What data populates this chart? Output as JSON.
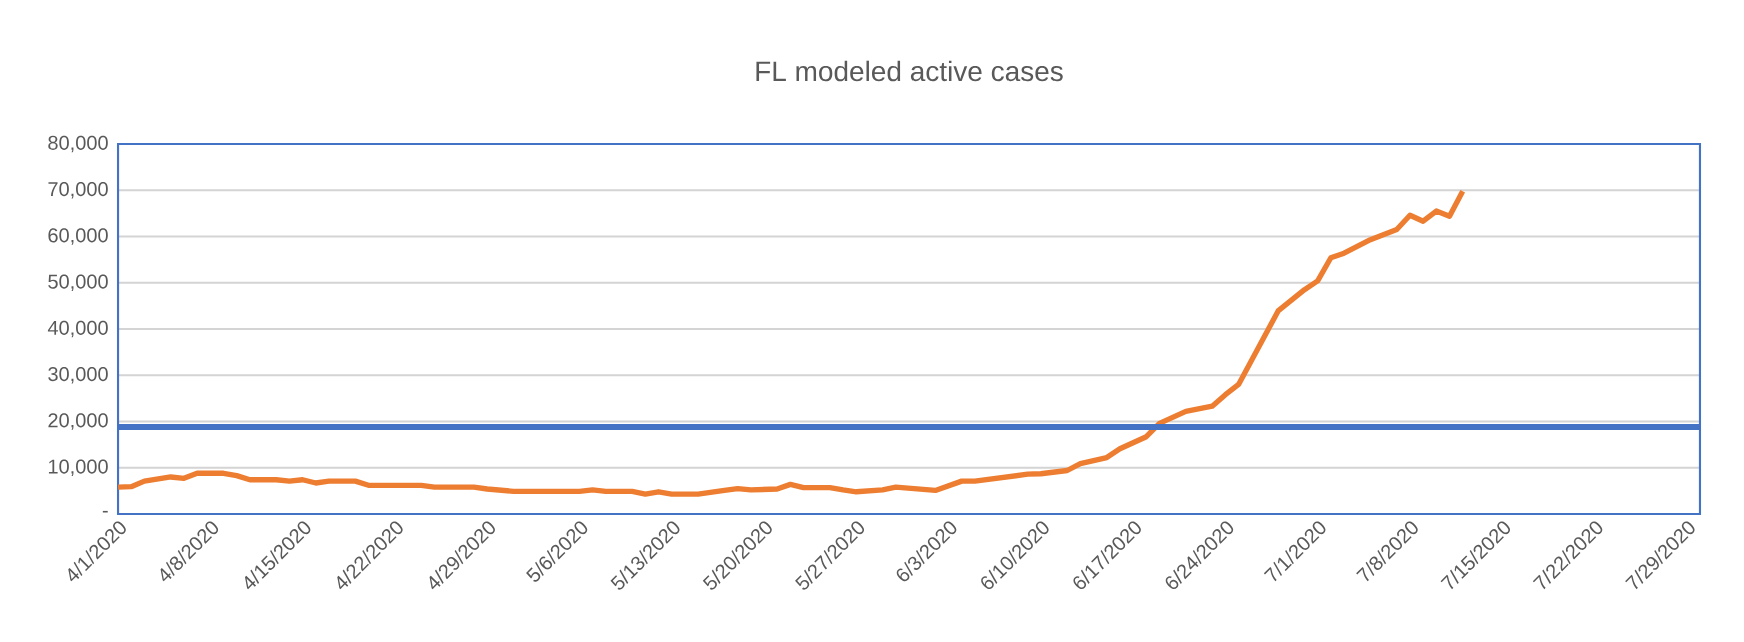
{
  "chart_data": {
    "type": "line",
    "title": "FL modeled active cases",
    "x": [
      "2020-04-01",
      "2020-04-02",
      "2020-04-03",
      "2020-04-05",
      "2020-04-06",
      "2020-04-07",
      "2020-04-09",
      "2020-04-10",
      "2020-04-11",
      "2020-04-13",
      "2020-04-14",
      "2020-04-15",
      "2020-04-16",
      "2020-04-17",
      "2020-04-19",
      "2020-04-20",
      "2020-04-24",
      "2020-04-25",
      "2020-04-28",
      "2020-04-29",
      "2020-05-01",
      "2020-05-06",
      "2020-05-07",
      "2020-05-08",
      "2020-05-10",
      "2020-05-11",
      "2020-05-12",
      "2020-05-13",
      "2020-05-15",
      "2020-05-17",
      "2020-05-18",
      "2020-05-19",
      "2020-05-21",
      "2020-05-22",
      "2020-05-23",
      "2020-05-25",
      "2020-05-26",
      "2020-05-27",
      "2020-05-29",
      "2020-05-30",
      "2020-06-02",
      "2020-06-04",
      "2020-06-05",
      "2020-06-09",
      "2020-06-10",
      "2020-06-12",
      "2020-06-13",
      "2020-06-15",
      "2020-06-16",
      "2020-06-18",
      "2020-06-19",
      "2020-06-21",
      "2020-06-23",
      "2020-06-24",
      "2020-06-25",
      "2020-06-26",
      "2020-06-28",
      "2020-06-30",
      "2020-07-01",
      "2020-07-02",
      "2020-07-03",
      "2020-07-05",
      "2020-07-07",
      "2020-07-08",
      "2020-07-09",
      "2020-07-10",
      "2020-07-11",
      "2020-07-12"
    ],
    "series": [
      {
        "color": "#ed7d31",
        "values": [
          5800,
          5900,
          7100,
          8000,
          7700,
          8800,
          8800,
          8300,
          7400,
          7400,
          7100,
          7400,
          6700,
          7100,
          7100,
          6200,
          6200,
          5800,
          5800,
          5400,
          4900,
          4900,
          5200,
          4900,
          4900,
          4300,
          4800,
          4300,
          4300,
          5100,
          5500,
          5200,
          5400,
          6400,
          5700,
          5700,
          5200,
          4800,
          5200,
          5800,
          5100,
          7100,
          7100,
          8600,
          8700,
          9400,
          10900,
          12200,
          14100,
          16700,
          19600,
          22200,
          23300,
          25800,
          28000,
          33300,
          43900,
          48500,
          50400,
          55400,
          56400,
          59300,
          61500,
          64600,
          63300,
          65500,
          64400,
          69800
        ]
      }
    ],
    "xlim": [
      "2020-04-01",
      "2020-07-30"
    ],
    "xticks": [
      {
        "value": "2020-04-01",
        "label": "4/1/2020"
      },
      {
        "value": "2020-04-08",
        "label": "4/8/2020"
      },
      {
        "value": "2020-04-15",
        "label": "4/15/2020"
      },
      {
        "value": "2020-04-22",
        "label": "4/22/2020"
      },
      {
        "value": "2020-04-29",
        "label": "4/29/2020"
      },
      {
        "value": "2020-05-06",
        "label": "5/6/2020"
      },
      {
        "value": "2020-05-13",
        "label": "5/13/2020"
      },
      {
        "value": "2020-05-20",
        "label": "5/20/2020"
      },
      {
        "value": "2020-05-27",
        "label": "5/27/2020"
      },
      {
        "value": "2020-06-03",
        "label": "6/3/2020"
      },
      {
        "value": "2020-06-10",
        "label": "6/10/2020"
      },
      {
        "value": "2020-06-17",
        "label": "6/17/2020"
      },
      {
        "value": "2020-06-24",
        "label": "6/24/2020"
      },
      {
        "value": "2020-07-01",
        "label": "7/1/2020"
      },
      {
        "value": "2020-07-08",
        "label": "7/8/2020"
      },
      {
        "value": "2020-07-15",
        "label": "7/15/2020"
      },
      {
        "value": "2020-07-22",
        "label": "7/22/2020"
      },
      {
        "value": "2020-07-29",
        "label": "7/29/2020"
      }
    ],
    "ylim": [
      0,
      80000
    ],
    "yticks": [
      {
        "value": 0,
        "label": "-"
      },
      {
        "value": 10000,
        "label": "10,000"
      },
      {
        "value": 20000,
        "label": "20,000"
      },
      {
        "value": 30000,
        "label": "30,000"
      },
      {
        "value": 40000,
        "label": "40,000"
      },
      {
        "value": 50000,
        "label": "50,000"
      },
      {
        "value": 60000,
        "label": "60,000"
      },
      {
        "value": 70000,
        "label": "70,000"
      },
      {
        "value": 80000,
        "label": "80,000"
      }
    ],
    "ref_lines": [
      {
        "axis": "y",
        "value": 18800,
        "color": "#4472c4"
      }
    ],
    "grid": "y",
    "marker": "none",
    "line_style": "solid"
  }
}
